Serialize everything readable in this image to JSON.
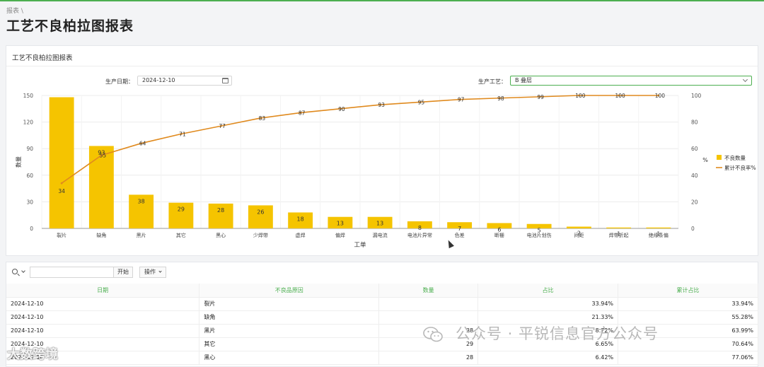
{
  "breadcrumb": "报表 \\",
  "page_title": "工艺不良柏拉图报表",
  "card_title": "工艺不良柏拉图报表",
  "filters": {
    "date_label": "生产日期：",
    "date_value": "2024-12-10",
    "process_label": "生产工艺：",
    "process_value": "B 叠层"
  },
  "colors": {
    "bar": "#f5c400",
    "line": "#e08a1e",
    "accent": "#4caf50"
  },
  "chart_data": {
    "type": "bar",
    "categories": [
      "裂片",
      "缺角",
      "黑片",
      "其它",
      "黑心",
      "少焊带",
      "虚焊",
      "偏焊",
      "漏电流",
      "电池片异常",
      "色差",
      "断栅",
      "电池片划伤",
      "间距",
      "焊带折起",
      "绝缘条偏"
    ],
    "series": [
      {
        "name": "不良数量",
        "type": "bar",
        "values": [
          148,
          93,
          38,
          29,
          28,
          26,
          18,
          13,
          13,
          8,
          7,
          6,
          5,
          2,
          1,
          1
        ]
      },
      {
        "name": "累计不良率%",
        "type": "line",
        "values": [
          34,
          55,
          64,
          71,
          77,
          83,
          87,
          90,
          93,
          95,
          97,
          98,
          99,
          100,
          100,
          100
        ]
      }
    ],
    "bar_labels": [
      "",
      "93",
      "38",
      "29",
      "28",
      "26",
      "18",
      "13",
      "13",
      "8",
      "7",
      "6",
      "5",
      "2",
      "1",
      "1"
    ],
    "line_labels": [
      "34",
      "55",
      "64",
      "71",
      "77",
      "83",
      "87",
      "90",
      "93",
      "95",
      "97",
      "98",
      "99",
      "100",
      "100",
      "100"
    ],
    "xlabel": "工单",
    "ylabel": "数量",
    "y2label": "%",
    "ylim": [
      0,
      150
    ],
    "y_ticks": [
      "0",
      "30",
      "60",
      "90",
      "120",
      "150"
    ],
    "y2lim": [
      0,
      100
    ],
    "y2_ticks": [
      "0",
      "20",
      "40",
      "60",
      "80",
      "100"
    ],
    "legend": "right"
  },
  "table": {
    "search_button": "开始",
    "ops_button": "操作",
    "columns": [
      "日期",
      "不良品原因",
      "数量",
      "占比",
      "累计占比"
    ],
    "rows": [
      [
        "2024-12-10",
        "裂片",
        "",
        "33.94%",
        "33.94%"
      ],
      [
        "2024-12-10",
        "缺角",
        "",
        "21.33%",
        "55.28%"
      ],
      [
        "2024-12-10",
        "黑片",
        "38",
        "8.72%",
        "63.99%"
      ],
      [
        "2024-12-10",
        "其它",
        "29",
        "6.65%",
        "70.64%"
      ],
      [
        "2024-12-10",
        "黑心",
        "28",
        "6.42%",
        "77.06%"
      ]
    ]
  },
  "watermark_text": "公众号 · 平锐信息官方公众号",
  "watermark2_text": "大数跨境"
}
